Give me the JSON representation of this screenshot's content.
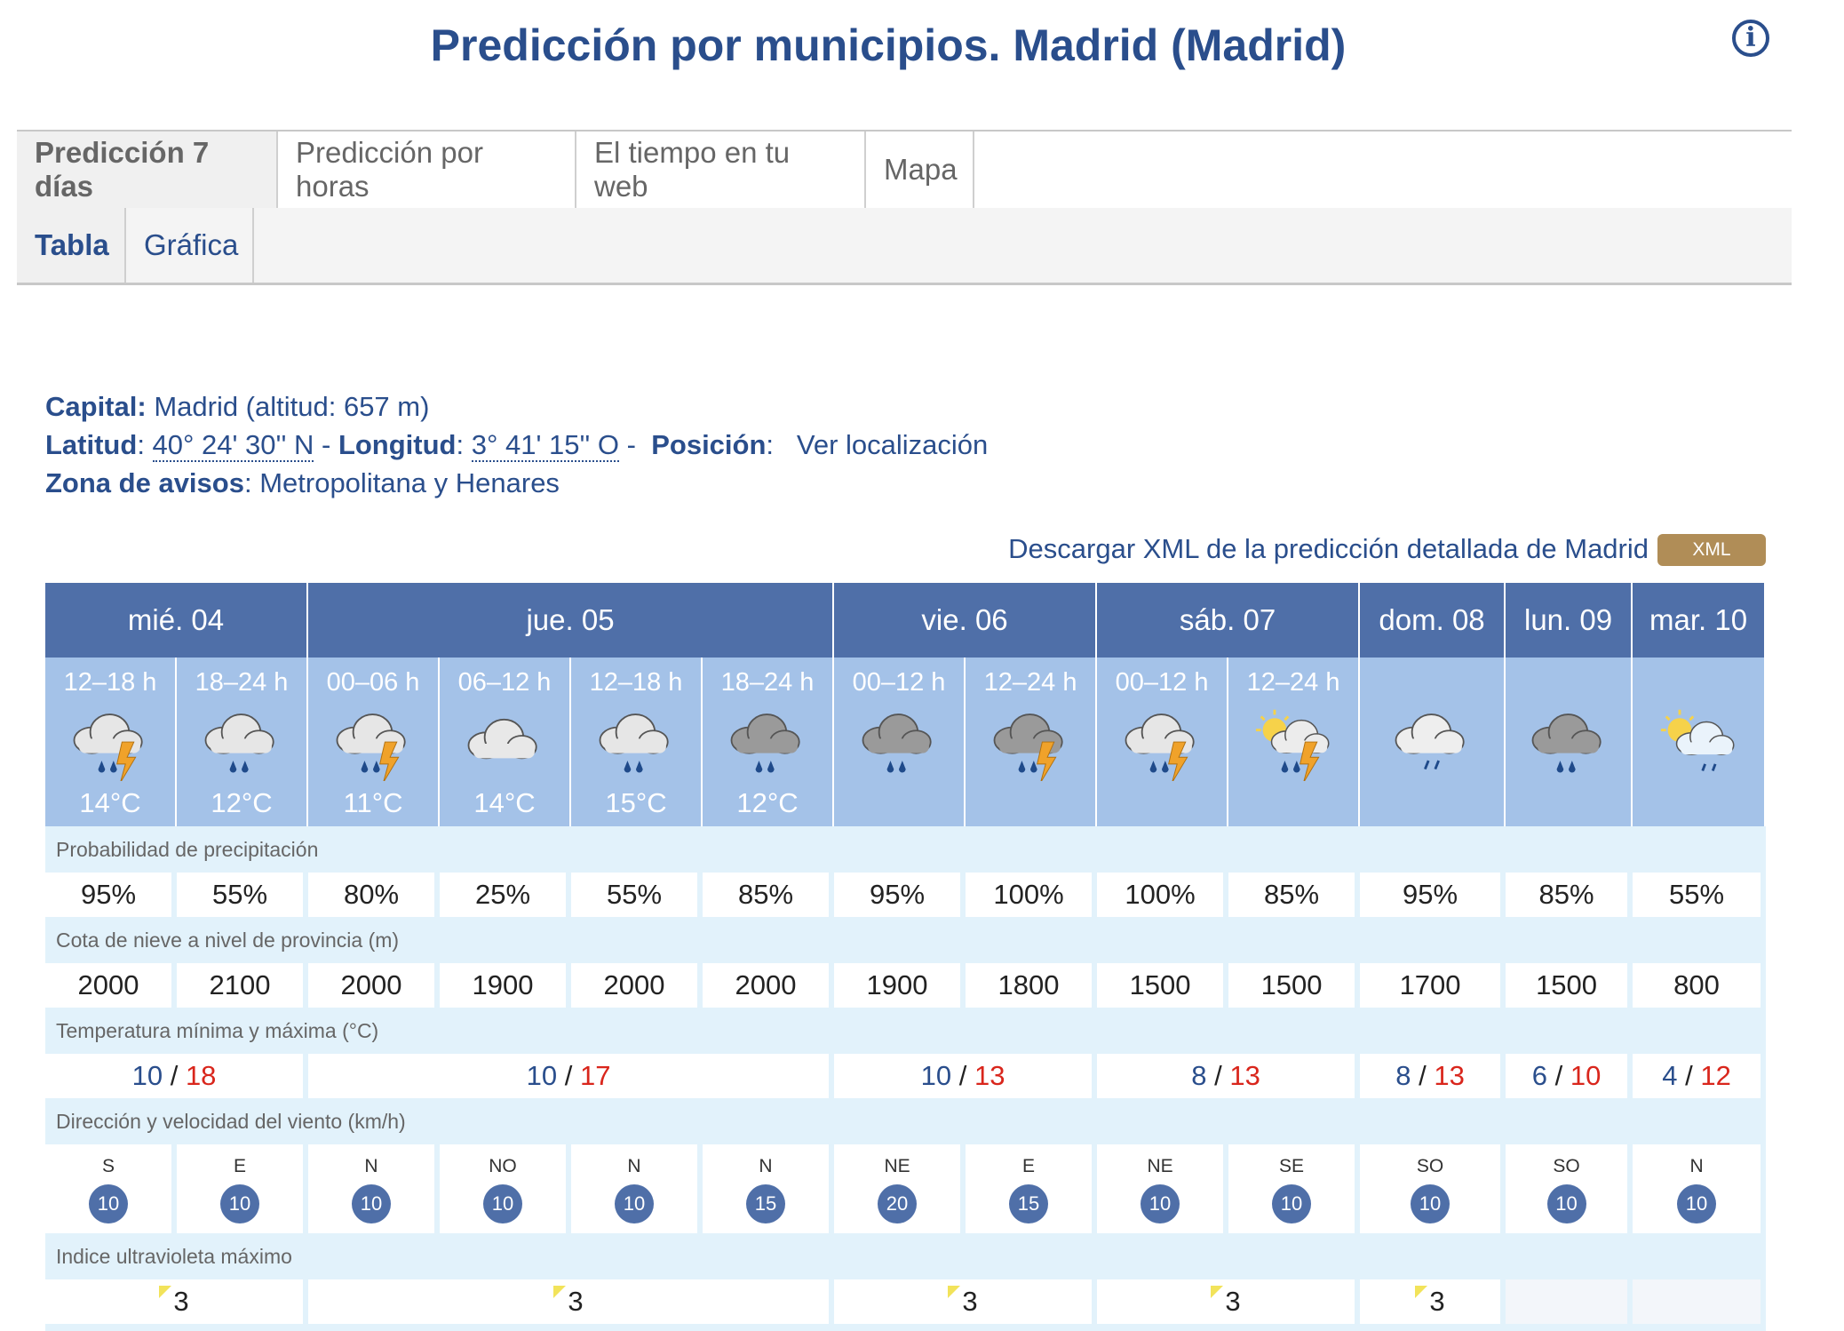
{
  "header": {
    "title": "Predicción por municipios. Madrid (Madrid)",
    "info_icon": "info-icon"
  },
  "tabs": [
    {
      "label": "Predicción 7 días",
      "active": true
    },
    {
      "label": "Predicción por horas",
      "active": false
    },
    {
      "label": "El tiempo en tu web",
      "active": false
    },
    {
      "label": "Mapa",
      "active": false
    }
  ],
  "subtabs": [
    {
      "label": "Tabla",
      "active": true
    },
    {
      "label": "Gráfica",
      "active": false
    }
  ],
  "meta": {
    "capital_label": "Capital:",
    "capital_value": "Madrid (altitud: 657 m)",
    "lat_label": "Latitud",
    "lat_value": "40° 24' 30'' N",
    "lon_label": "Longitud",
    "lon_value": "3° 41' 15'' O",
    "pos_label": "Posición",
    "pos_link": "Ver localización",
    "zona_label": "Zona de avisos",
    "zona_value": "Metropolitana y Henares"
  },
  "download": {
    "text": "Descargar XML de la predicción detallada de Madrid",
    "button": "XML"
  },
  "days": [
    {
      "label": "mié. 04",
      "span": 2
    },
    {
      "label": "jue. 05",
      "span": 4
    },
    {
      "label": "vie. 06",
      "span": 2
    },
    {
      "label": "sáb. 07",
      "span": 2
    },
    {
      "label": "dom. 08",
      "span": 1
    },
    {
      "label": "lun. 09",
      "span": 1
    },
    {
      "label": "mar. 10",
      "span": 1
    }
  ],
  "periods": [
    {
      "label": "12–18 h",
      "temp": "14°C",
      "icon": "storm-rain-icon"
    },
    {
      "label": "18–24 h",
      "temp": "12°C",
      "icon": "rain-cloud-icon"
    },
    {
      "label": "00–06 h",
      "temp": "11°C",
      "icon": "storm-rain-icon"
    },
    {
      "label": "06–12 h",
      "temp": "14°C",
      "icon": "cloud-icon"
    },
    {
      "label": "12–18 h",
      "temp": "15°C",
      "icon": "rain-cloud-icon"
    },
    {
      "label": "18–24 h",
      "temp": "12°C",
      "icon": "dark-rain-cloud-icon"
    },
    {
      "label": "00–12 h",
      "temp": "",
      "icon": "dark-rain-cloud-icon"
    },
    {
      "label": "12–24 h",
      "temp": "",
      "icon": "dark-storm-cloud-icon"
    },
    {
      "label": "00–12 h",
      "temp": "",
      "icon": "storm-rain-icon"
    },
    {
      "label": "12–24 h",
      "temp": "",
      "icon": "sun-storm-icon"
    },
    {
      "label": "",
      "temp": "",
      "icon": "light-rain-cloud-icon"
    },
    {
      "label": "",
      "temp": "",
      "icon": "dark-rain-cloud-icon"
    },
    {
      "label": "",
      "temp": "",
      "icon": "sun-drizzle-icon"
    }
  ],
  "labels": {
    "precip": "Probabilidad de precipitación",
    "snow": "Cota de nieve a nivel de provincia (m)",
    "temp": "Temperatura mínima y máxima (°C)",
    "wind": "Dirección y velocidad del viento (km/h)",
    "uv": "Indice ultravioleta máximo"
  },
  "precip": [
    "95%",
    "55%",
    "80%",
    "25%",
    "55%",
    "85%",
    "95%",
    "100%",
    "100%",
    "85%",
    "95%",
    "85%",
    "55%"
  ],
  "snow": [
    "2000",
    "2100",
    "2000",
    "1900",
    "2000",
    "2000",
    "1900",
    "1800",
    "1500",
    "1500",
    "1700",
    "1500",
    "800"
  ],
  "temps": [
    {
      "min": "10",
      "sep": "/",
      "max": "18",
      "span": 2
    },
    {
      "min": "10",
      "sep": "/",
      "max": "17",
      "span": 4
    },
    {
      "min": "10",
      "sep": "/",
      "max": "13",
      "span": 2
    },
    {
      "min": "8",
      "sep": "/",
      "max": "13",
      "span": 2
    },
    {
      "min": "8",
      "sep": "/",
      "max": "13",
      "span": 1
    },
    {
      "min": "6",
      "sep": "/",
      "max": "10",
      "span": 1
    },
    {
      "min": "4",
      "sep": "/",
      "max": "12",
      "span": 1
    }
  ],
  "wind": [
    {
      "dir": "S",
      "speed": "10"
    },
    {
      "dir": "E",
      "speed": "10"
    },
    {
      "dir": "N",
      "speed": "10"
    },
    {
      "dir": "NO",
      "speed": "10"
    },
    {
      "dir": "N",
      "speed": "10"
    },
    {
      "dir": "N",
      "speed": "15"
    },
    {
      "dir": "NE",
      "speed": "20"
    },
    {
      "dir": "E",
      "speed": "15"
    },
    {
      "dir": "NE",
      "speed": "10"
    },
    {
      "dir": "SE",
      "speed": "10"
    },
    {
      "dir": "SO",
      "speed": "10"
    },
    {
      "dir": "SO",
      "speed": "10"
    },
    {
      "dir": "N",
      "speed": "10"
    }
  ],
  "uv": [
    {
      "value": "3",
      "span": 2
    },
    {
      "value": "3",
      "span": 4
    },
    {
      "value": "3",
      "span": 2
    },
    {
      "value": "3",
      "span": 2
    },
    {
      "value": "3",
      "span": 1
    },
    {
      "value": "",
      "span": 1
    },
    {
      "value": "",
      "span": 1
    }
  ],
  "colors": {
    "primary": "#2a4e8c",
    "day_header": "#4f6fa8",
    "period_bg": "#a4c2e8",
    "label_bg": "#e2f2fb",
    "max_temp": "#d9261c",
    "xml_button": "#b08d57"
  }
}
